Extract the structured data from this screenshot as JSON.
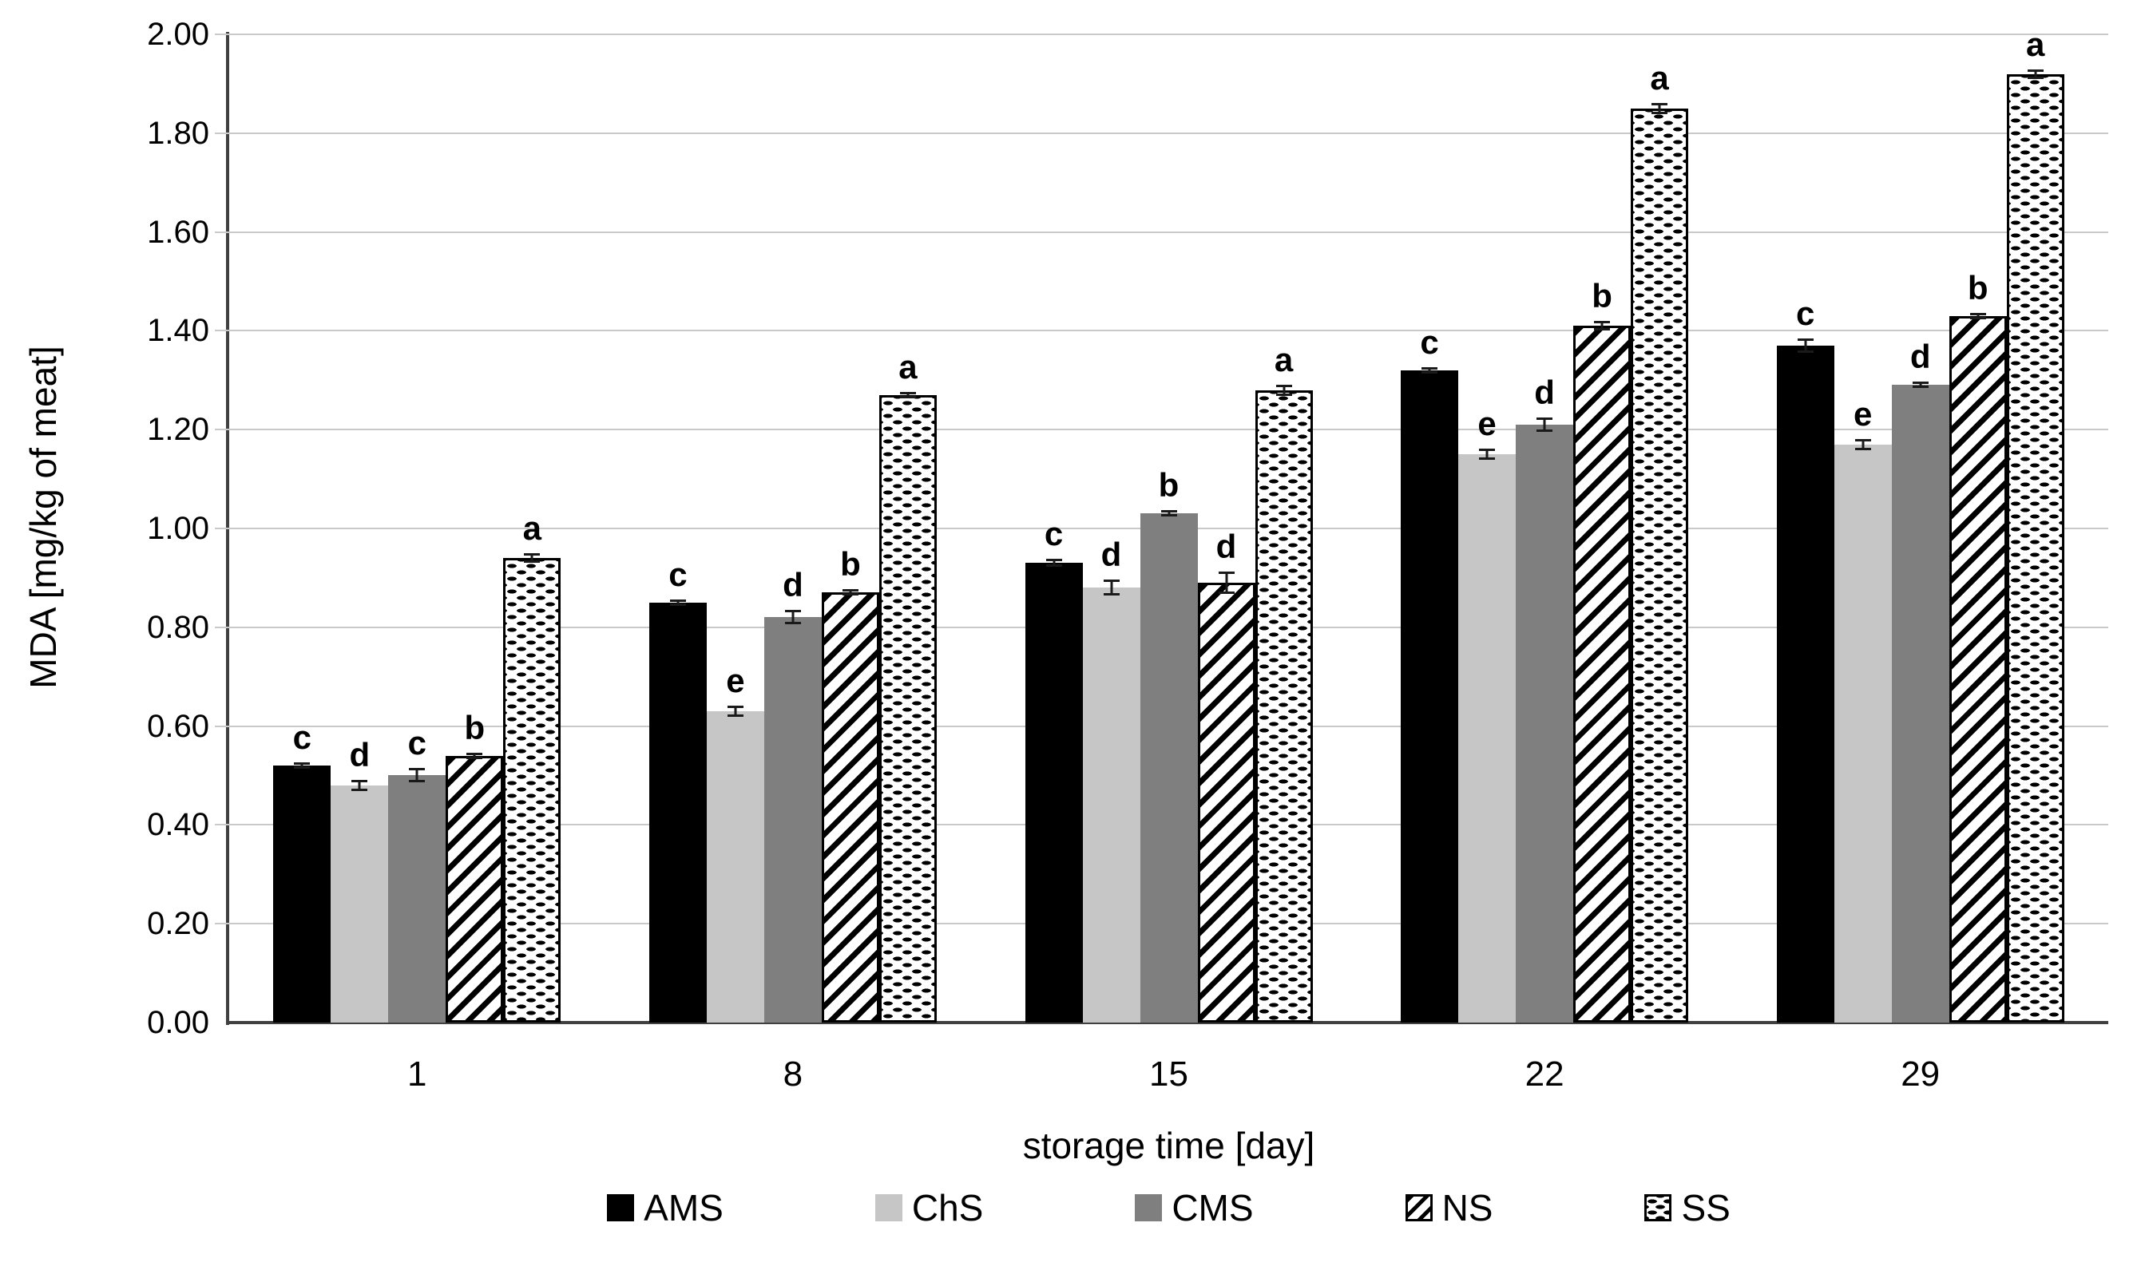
{
  "chart_data": {
    "type": "bar",
    "title": "",
    "xlabel": "storage time [day]",
    "ylabel": "MDA [mg/kg of meat]",
    "ylim": [
      0,
      2.0
    ],
    "ytick_step": 0.2,
    "ytick_decimals": 2,
    "grid": true,
    "legend_position": "bottom",
    "categories": [
      "1",
      "8",
      "15",
      "22",
      "29"
    ],
    "series": [
      {
        "name": "AMS",
        "pattern": "solid-black",
        "values": [
          0.52,
          0.85,
          0.93,
          1.32,
          1.37
        ],
        "errors": [
          0.006,
          0.006,
          0.008,
          0.006,
          0.015
        ],
        "letters": [
          "c",
          "c",
          "c",
          "c",
          "c"
        ]
      },
      {
        "name": "ChS",
        "pattern": "light-gray",
        "values": [
          0.48,
          0.63,
          0.88,
          1.15,
          1.17
        ],
        "errors": [
          0.012,
          0.012,
          0.016,
          0.012,
          0.012
        ],
        "letters": [
          "d",
          "e",
          "d",
          "e",
          "e"
        ]
      },
      {
        "name": "CMS",
        "pattern": "dark-gray",
        "values": [
          0.5,
          0.82,
          1.03,
          1.21,
          1.29
        ],
        "errors": [
          0.014,
          0.014,
          0.006,
          0.014,
          0.006
        ],
        "letters": [
          "c",
          "d",
          "b",
          "d",
          "d"
        ]
      },
      {
        "name": "NS",
        "pattern": "diagonal-hatch",
        "values": [
          0.54,
          0.87,
          0.89,
          1.41,
          1.43
        ],
        "errors": [
          0.006,
          0.005,
          0.022,
          0.01,
          0.006
        ],
        "letters": [
          "b",
          "b",
          "d",
          "b",
          "b"
        ]
      },
      {
        "name": "SS",
        "pattern": "dashed-dots",
        "values": [
          0.94,
          1.27,
          1.28,
          1.85,
          1.92
        ],
        "errors": [
          0.009,
          0.006,
          0.012,
          0.012,
          0.01
        ],
        "letters": [
          "a",
          "a",
          "a",
          "a",
          "a"
        ]
      }
    ],
    "colors": {
      "solid-black": "#000000",
      "light-gray": "#c6c6c6",
      "dark-gray": "#7f7f7f",
      "hatch-foreground": "#000000",
      "background": "#ffffff",
      "gridline": "#c9c9c9",
      "axis": "#404040"
    }
  }
}
